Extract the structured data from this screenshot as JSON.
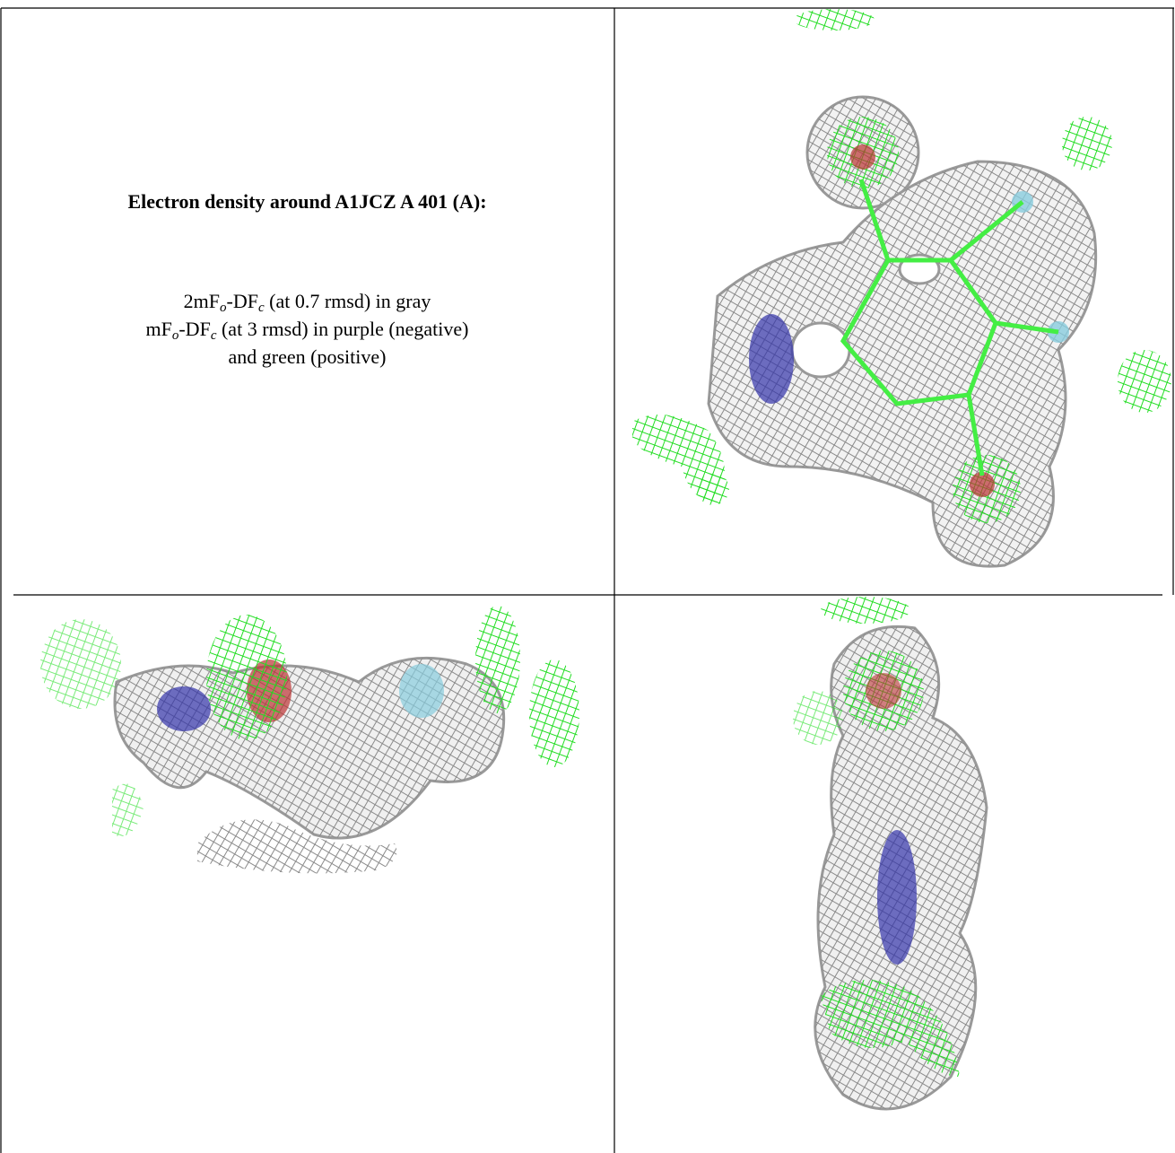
{
  "caption": {
    "title": "Electron density around A1JCZ A 401 (A):",
    "lines": [
      {
        "pre": "2mF",
        "sub1": "o",
        "mid": "-DF",
        "sub2": "c",
        "post": " (at 0.7 rmsd) in gray"
      },
      {
        "pre": "mF",
        "sub1": "o",
        "mid": "-DF",
        "sub2": "c",
        "post": " (at 3 rmsd) in purple (negative)"
      },
      {
        "text": "and green (positive)"
      }
    ]
  }
}
